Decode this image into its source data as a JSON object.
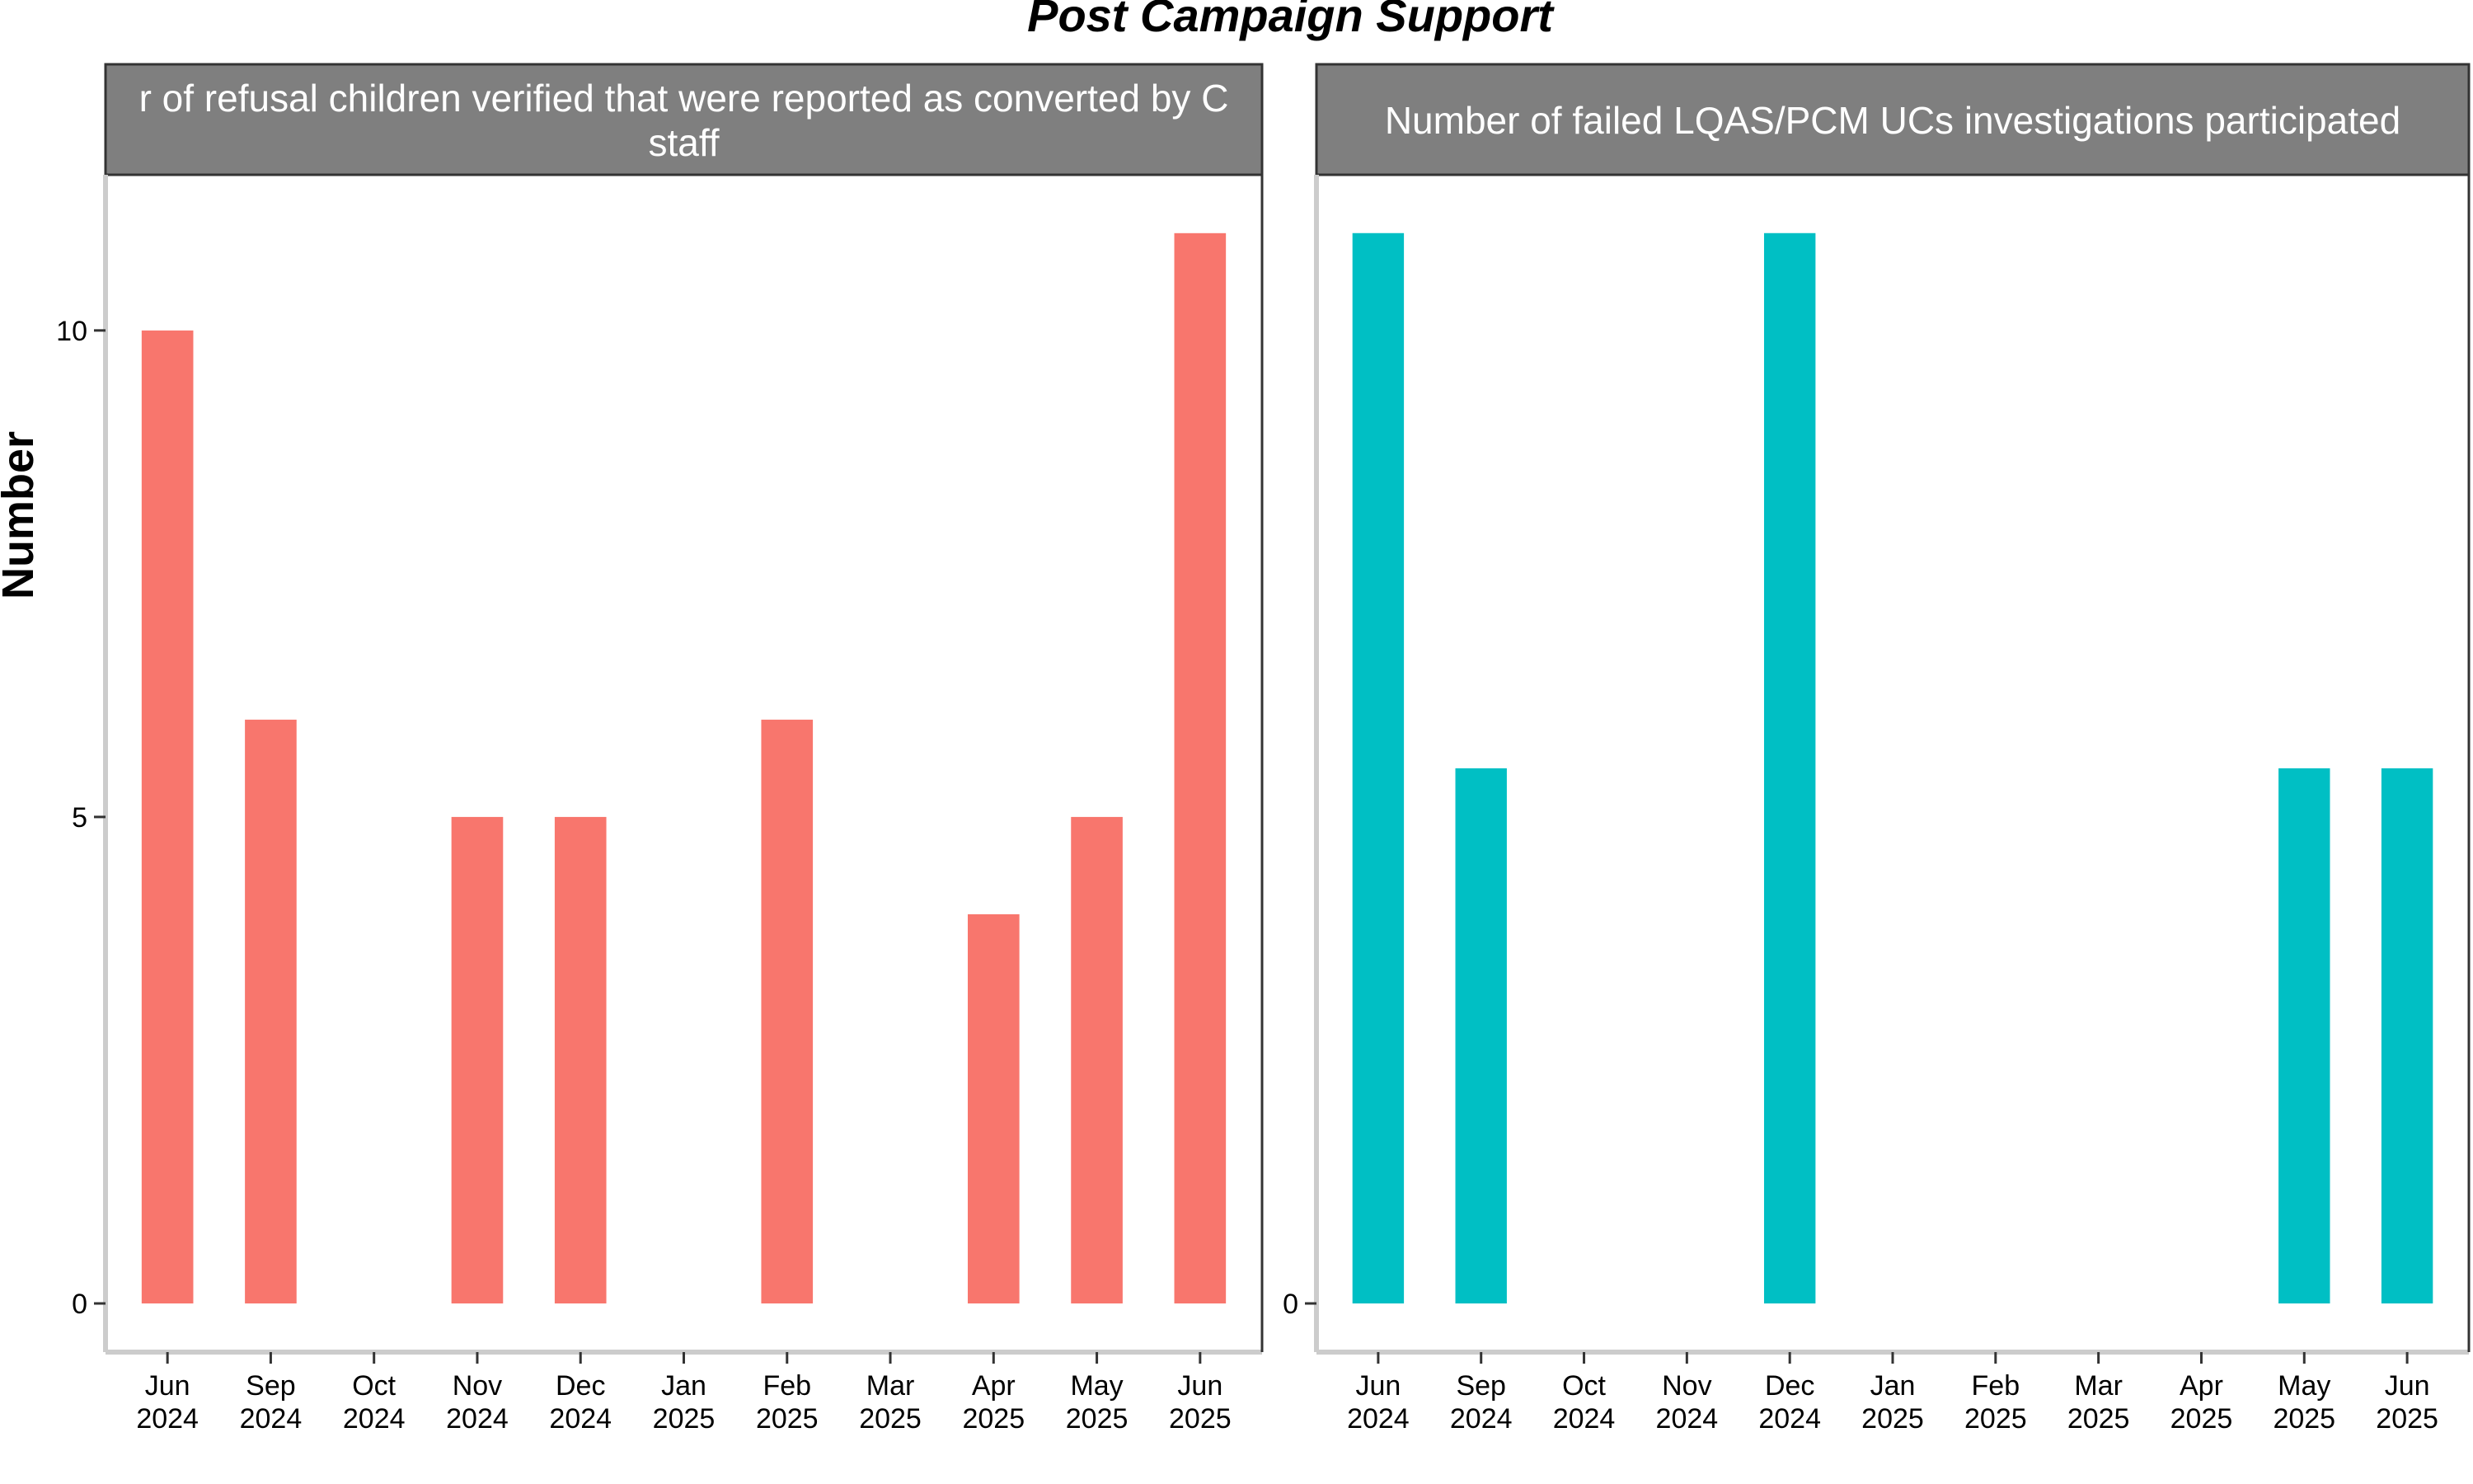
{
  "title": "Post Campaign Support",
  "ylabel": "Number",
  "colors": {
    "panel_1": "#F8766D",
    "panel_2": "#00BFC4",
    "strip": "#7f7f7f",
    "axis": "#cccccc"
  },
  "chart_data": [
    {
      "type": "bar",
      "title": "Number of refusal children verified that were reported as converted by C staff",
      "title_lines": [
        "r of refusal children verified that were reported as converted by C",
        "staff"
      ],
      "categories": [
        "Jun 2024",
        "Sep 2024",
        "Oct 2024",
        "Nov 2024",
        "Dec 2024",
        "Jan 2025",
        "Feb 2025",
        "Mar 2025",
        "Apr 2025",
        "May 2025",
        "Jun 2025"
      ],
      "x_ticks": [
        [
          "Jun",
          "2024"
        ],
        [
          "Sep",
          "2024"
        ],
        [
          "Oct",
          "2024"
        ],
        [
          "Nov",
          "2024"
        ],
        [
          "Dec",
          "2024"
        ],
        [
          "Jan",
          "2025"
        ],
        [
          "Feb",
          "2025"
        ],
        [
          "Mar",
          "2025"
        ],
        [
          "Apr",
          "2025"
        ],
        [
          "May",
          "2025"
        ],
        [
          "Jun",
          "2025"
        ]
      ],
      "values": [
        10,
        6,
        null,
        5,
        5,
        null,
        6,
        null,
        4,
        5,
        11
      ],
      "ylim": [
        -0.5,
        11.6
      ],
      "yticks": [
        0,
        5,
        10
      ],
      "ylabel": "Number"
    },
    {
      "type": "bar",
      "title": "Number of failed LQAS/PCM UCs investigations participated",
      "title_lines": [
        "Number of failed LQAS/PCM UCs investigations participated"
      ],
      "categories": [
        "Jun 2024",
        "Sep 2024",
        "Oct 2024",
        "Nov 2024",
        "Dec 2024",
        "Jan 2025",
        "Feb 2025",
        "Mar 2025",
        "Apr 2025",
        "May 2025",
        "Jun 2025"
      ],
      "x_ticks": [
        [
          "Jun",
          "2024"
        ],
        [
          "Sep",
          "2024"
        ],
        [
          "Oct",
          "2024"
        ],
        [
          "Nov",
          "2024"
        ],
        [
          "Dec",
          "2024"
        ],
        [
          "Jan",
          "2025"
        ],
        [
          "Feb",
          "2025"
        ],
        [
          "Mar",
          "2025"
        ],
        [
          "Apr",
          "2025"
        ],
        [
          "May",
          "2025"
        ],
        [
          "Jun",
          "2025"
        ]
      ],
      "values": [
        2,
        1,
        null,
        null,
        2,
        null,
        null,
        null,
        null,
        1,
        1
      ],
      "ylim": [
        -0.0909,
        2.109
      ],
      "yticks": [
        0
      ],
      "ylabel": ""
    }
  ]
}
